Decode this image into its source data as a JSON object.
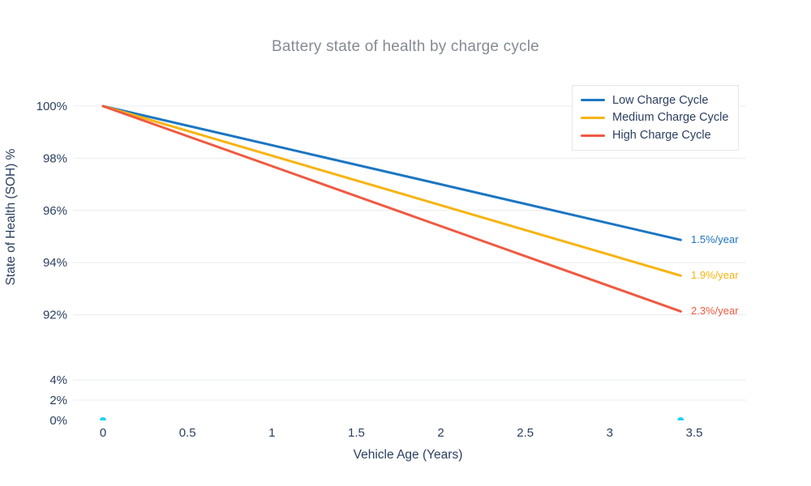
{
  "chart_data": {
    "type": "line",
    "title": "Battery state of health by charge cycle",
    "xlabel": "Vehicle Age (Years)",
    "ylabel": "State of Health (SOH) %",
    "x_range": [
      0,
      3.5
    ],
    "x_ticks": [
      0,
      0.5,
      1,
      1.5,
      2,
      2.5,
      3,
      3.5
    ],
    "axis_break": true,
    "top_axis": {
      "tick_values": [
        100,
        98,
        96,
        94,
        92
      ],
      "tick_labels": [
        "100%",
        "98%",
        "96%",
        "94%",
        "92%"
      ],
      "range": [
        91.5,
        100.1
      ]
    },
    "bottom_axis": {
      "tick_values": [
        4,
        2,
        0
      ],
      "tick_labels": [
        "4%",
        "2%",
        "0%"
      ],
      "range": [
        0,
        5
      ]
    },
    "grid": true,
    "legend_position": "top-right",
    "x": [
      0,
      3.42
    ],
    "series": [
      {
        "name": "Low Charge Cycle",
        "color": "#1c76c2",
        "rate_per_year": 1.5,
        "rate_label": "1.5%/year",
        "values": [
          100,
          94.87
        ]
      },
      {
        "name": "Medium Charge Cycle",
        "color": "#f7b411",
        "rate_per_year": 1.9,
        "rate_label": "1.9%/year",
        "values": [
          100,
          93.5
        ]
      },
      {
        "name": "High Charge Cycle",
        "color": "#ef5a41",
        "rate_per_year": 2.3,
        "rate_label": "2.3%/year",
        "values": [
          100,
          92.13
        ]
      }
    ],
    "baseline_markers": {
      "color": "#19d3f3",
      "x": [
        0,
        3.42
      ],
      "y": 0
    },
    "colors": {
      "grid": "#eaecef",
      "title_text": "#858b94",
      "axis_text": "#2a3f5f",
      "legend_border": "#e3e6e9",
      "background": "#ffffff"
    }
  }
}
